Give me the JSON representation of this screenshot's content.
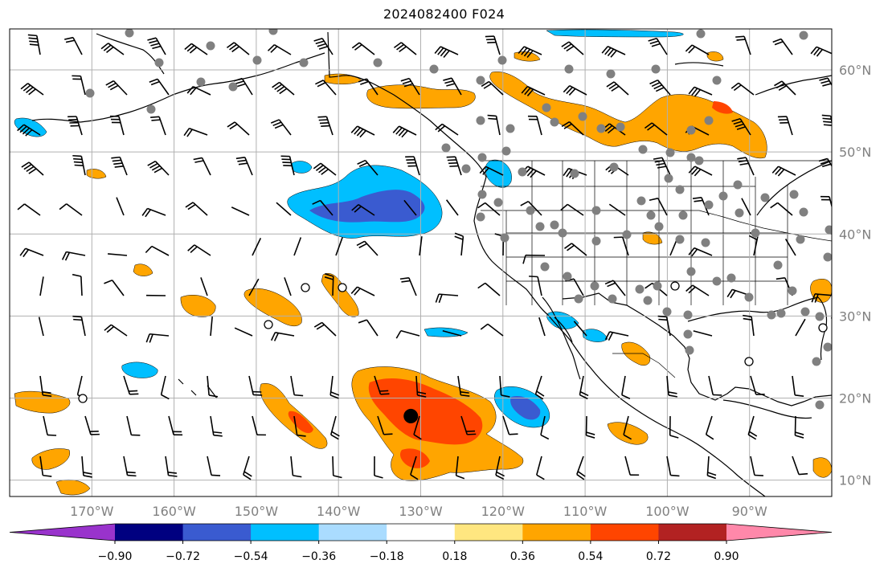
{
  "title": "2024082400 F024",
  "map": {
    "lon_range": [
      -180,
      -80
    ],
    "lat_range": [
      8,
      65
    ],
    "lon_ticks": [
      {
        "value": -170,
        "label": "170°W"
      },
      {
        "value": -160,
        "label": "160°W"
      },
      {
        "value": -150,
        "label": "150°W"
      },
      {
        "value": -140,
        "label": "140°W"
      },
      {
        "value": -130,
        "label": "130°W"
      },
      {
        "value": -120,
        "label": "120°W"
      },
      {
        "value": -110,
        "label": "110°W"
      },
      {
        "value": -100,
        "label": "100°W"
      },
      {
        "value": -90,
        "label": "90°W"
      }
    ],
    "lat_ticks": [
      {
        "value": 60,
        "label": "60°N"
      },
      {
        "value": 50,
        "label": "50°N"
      },
      {
        "value": 40,
        "label": "40°N"
      },
      {
        "value": 30,
        "label": "30°N"
      },
      {
        "value": 20,
        "label": "20°N"
      },
      {
        "value": 10,
        "label": "10°N"
      }
    ],
    "grid": true,
    "storm_marker": {
      "lon": -131.2,
      "lat": 17.8
    }
  },
  "colorbar": {
    "colors": [
      "#9933cc",
      "#000080",
      "#3a5bd0",
      "#00bfff",
      "#aadcff",
      "#ffffff",
      "#ffe680",
      "#ffa500",
      "#ff4500",
      "#b22222",
      "#ff88aa"
    ],
    "boundaries": [
      "−0.90",
      "−0.72",
      "−0.54",
      "−0.36",
      "−0.18",
      "0.18",
      "0.36",
      "0.54",
      "0.72",
      "0.90"
    ],
    "extend": "both"
  },
  "colors": {
    "positive_light": "#ffa500",
    "positive_strong": "#ff4500",
    "negative_light": "#aadcff",
    "negative_mid": "#00bfff",
    "negative_strong": "#3a5bd0",
    "station": "#808080",
    "grid": "#b0b0b0"
  }
}
